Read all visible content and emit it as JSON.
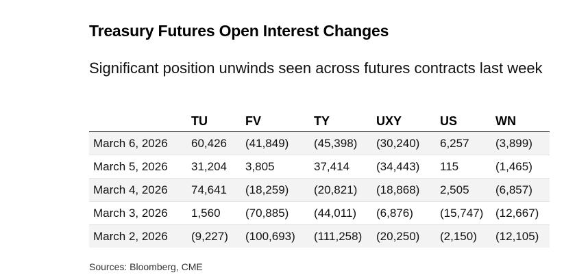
{
  "title": "Treasury Futures Open Interest Changes",
  "subtitle": "Significant position unwinds seen across futures contracts last week",
  "source": "Sources: Bloomberg, CME",
  "chart_data": {
    "type": "table",
    "title": "Treasury Futures Open Interest Changes",
    "subtitle": "Significant position unwinds seen across futures contracts last week",
    "columns": [
      "",
      "TU",
      "FV",
      "TY",
      "UXY",
      "US",
      "WN"
    ],
    "rows": [
      {
        "date": "March 6, 2026",
        "values": [
          "60,426",
          "(41,849)",
          "(45,398)",
          "(30,240)",
          "6,257",
          "(3,899)"
        ]
      },
      {
        "date": "March 5, 2026",
        "values": [
          "31,204",
          "3,805",
          "37,414",
          "(34,443)",
          "115",
          "(1,465)"
        ]
      },
      {
        "date": "March 4, 2026",
        "values": [
          "74,641",
          "(18,259)",
          "(20,821)",
          "(18,868)",
          "2,505",
          "(6,857)"
        ]
      },
      {
        "date": "March 3, 2026",
        "values": [
          "1,560",
          "(70,885)",
          "(44,011)",
          "(6,876)",
          "(15,747)",
          "(12,667)"
        ]
      },
      {
        "date": "March 2, 2026",
        "values": [
          "(9,227)",
          "(100,693)",
          "(111,258)",
          "(20,250)",
          "(2,150)",
          "(12,105)"
        ]
      }
    ],
    "numeric_values": {
      "TU": [
        60426,
        31204,
        74641,
        1560,
        -9227
      ],
      "FV": [
        -41849,
        3805,
        -18259,
        -70885,
        -100693
      ],
      "TY": [
        -45398,
        37414,
        -20821,
        -44011,
        -111258
      ],
      "UXY": [
        -30240,
        -34443,
        -18868,
        -6876,
        -20250
      ],
      "US": [
        6257,
        115,
        2505,
        -15747,
        -2150
      ],
      "WN": [
        -3899,
        -1465,
        -6857,
        -12667,
        -12105
      ]
    }
  }
}
